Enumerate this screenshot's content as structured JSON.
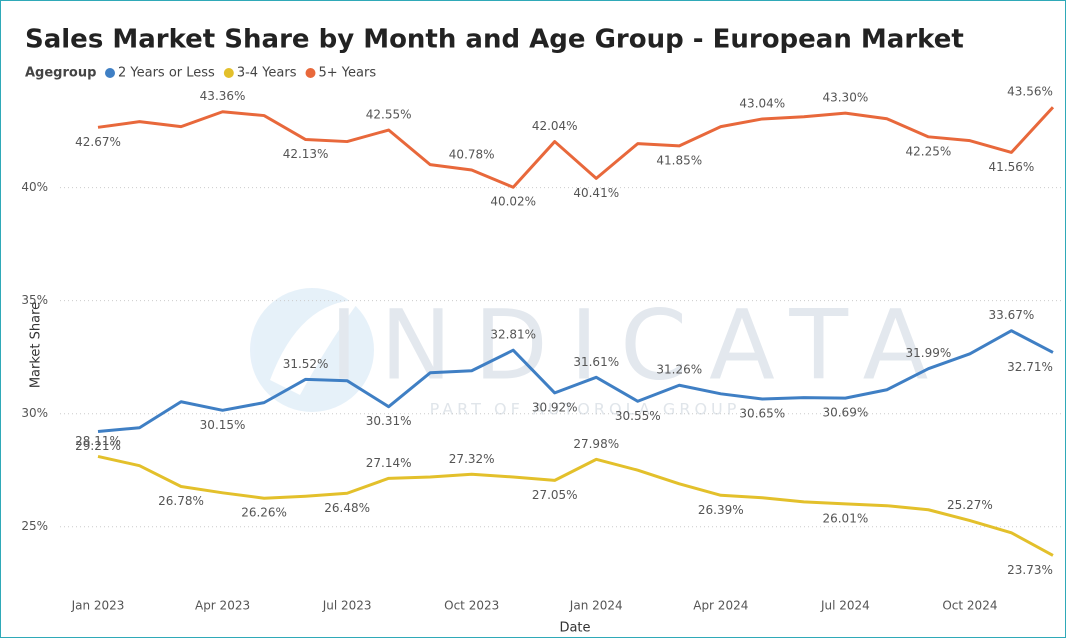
{
  "chart_data": {
    "type": "line",
    "title": "Sales Market Share by Month and Age Group - European Market",
    "legend_title": "Agegroup",
    "x_label": "Date",
    "y_label": "Market Share",
    "watermark": "INDICATA",
    "watermark_subtitle": "PART OF AUTOROLA GROUP",
    "categories": [
      "Jan 2023",
      null,
      null,
      "Apr 2023",
      null,
      null,
      "Jul 2023",
      null,
      null,
      "Oct 2023",
      null,
      null,
      "Jan 2024",
      null,
      null,
      "Apr 2024",
      null,
      null,
      "Jul 2024",
      null,
      null,
      "Oct 2024",
      null,
      null
    ],
    "ylim": [
      22.2,
      44.1
    ],
    "yticks": [
      {
        "value": 25,
        "label": "25%"
      },
      {
        "value": 30,
        "label": "30%"
      },
      {
        "value": 35,
        "label": "35%"
      },
      {
        "value": 40,
        "label": "40%"
      }
    ],
    "grid": true,
    "series": [
      {
        "name": "2 Years or Less",
        "color": "#3f7fc4",
        "values": [
          29.21,
          29.38,
          30.53,
          30.15,
          30.49,
          31.52,
          31.46,
          30.31,
          31.81,
          31.9,
          32.81,
          30.92,
          31.61,
          30.55,
          31.26,
          30.88,
          30.65,
          30.71,
          30.69,
          31.06,
          31.99,
          32.65,
          33.67,
          32.71
        ],
        "value_labels": [
          "29.21%",
          null,
          null,
          "30.15%",
          null,
          "31.52%",
          null,
          "30.31%",
          null,
          null,
          "32.81%",
          "30.92%",
          "31.61%",
          "30.55%",
          "31.26%",
          null,
          "30.65%",
          null,
          "30.69%",
          null,
          "31.99%",
          null,
          "33.67%",
          "32.71%"
        ]
      },
      {
        "name": "3-4 Years",
        "color": "#e3c02b",
        "values": [
          28.11,
          27.7,
          26.78,
          26.5,
          26.26,
          26.35,
          26.48,
          27.14,
          27.2,
          27.32,
          27.2,
          27.05,
          27.98,
          27.5,
          26.9,
          26.39,
          26.28,
          26.1,
          26.01,
          25.93,
          25.75,
          25.27,
          24.73,
          23.73
        ],
        "value_labels": [
          "28.11%",
          null,
          "26.78%",
          null,
          "26.26%",
          null,
          "26.48%",
          "27.14%",
          null,
          "27.32%",
          null,
          "27.05%",
          "27.98%",
          null,
          null,
          "26.39%",
          null,
          null,
          "26.01%",
          null,
          null,
          "25.27%",
          null,
          "23.73%"
        ]
      },
      {
        "name": "5+ Years",
        "color": "#e8683b",
        "values": [
          42.67,
          42.92,
          42.7,
          43.36,
          43.19,
          42.13,
          42.04,
          42.55,
          41.02,
          40.78,
          40.02,
          42.04,
          40.41,
          41.95,
          41.85,
          42.7,
          43.04,
          43.14,
          43.3,
          43.05,
          42.25,
          42.08,
          41.56,
          43.56
        ],
        "value_labels": [
          "42.67%",
          null,
          null,
          "43.36%",
          null,
          "42.13%",
          null,
          "42.55%",
          null,
          "40.78%",
          "40.02%",
          "42.04%",
          "40.41%",
          null,
          "41.85%",
          null,
          "43.04%",
          null,
          "43.30%",
          null,
          "42.25%",
          null,
          "41.56%",
          "43.56%"
        ]
      }
    ]
  }
}
